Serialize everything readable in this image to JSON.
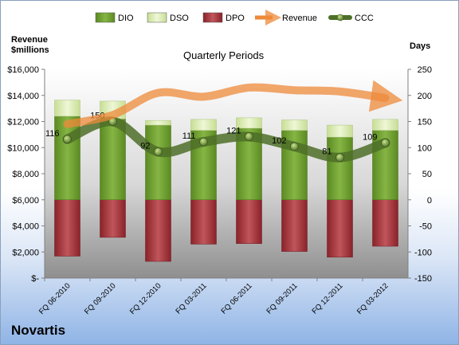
{
  "company": "Novartis",
  "chart_data": {
    "type": "bar",
    "title": "Quarterly Periods",
    "left_axis_title_line1": "Revenue",
    "left_axis_title_line2": "$millions",
    "right_axis_title": "Days",
    "categories": [
      "FQ 06-2010",
      "FQ 09-2010",
      "FQ 12-2010",
      "FQ 03-2011",
      "FQ 06-2011",
      "FQ 09-2011",
      "FQ 12-2011",
      "FQ 03-2012"
    ],
    "left_ylim": [
      0,
      16000
    ],
    "left_ticks": [
      "$-",
      "$2,000",
      "$4,000",
      "$6,000",
      "$8,000",
      "$10,000",
      "$12,000",
      "$14,000",
      "$16,000"
    ],
    "right_ylim": [
      -150,
      250
    ],
    "right_ticks": [
      "-150",
      "-100",
      "-50",
      "0",
      "50",
      "100",
      "150",
      "200",
      "250"
    ],
    "series": [
      {
        "name": "DIO",
        "axis": "right",
        "kind": "stacked-bar",
        "color": "#6e9a2e",
        "values": [
          160,
          155,
          143,
          133,
          137,
          133,
          120,
          133
        ]
      },
      {
        "name": "DSO",
        "axis": "right",
        "kind": "stacked-bar",
        "color": "#d9eab0",
        "values": [
          31,
          34,
          9,
          21,
          20,
          20,
          23,
          21
        ]
      },
      {
        "name": "DPO",
        "axis": "right",
        "kind": "negative-bar",
        "color": "#9b2e35",
        "values": [
          -108,
          -72,
          -118,
          -85,
          -84,
          -99,
          -110,
          -89
        ]
      },
      {
        "name": "Revenue",
        "axis": "left",
        "kind": "line",
        "color": "#ee8a3a",
        "values": [
          11800,
          12500,
          14200,
          13900,
          14600,
          14400,
          14300,
          13800
        ]
      },
      {
        "name": "CCC",
        "axis": "right",
        "kind": "line",
        "color": "#4e6f28",
        "values": [
          116,
          150,
          92,
          111,
          121,
          102,
          81,
          109
        ]
      }
    ],
    "data_labels": [
      "116",
      "150",
      "92",
      "111",
      "121",
      "102",
      "81",
      "109"
    ],
    "legend_position": "top",
    "grid": false
  }
}
